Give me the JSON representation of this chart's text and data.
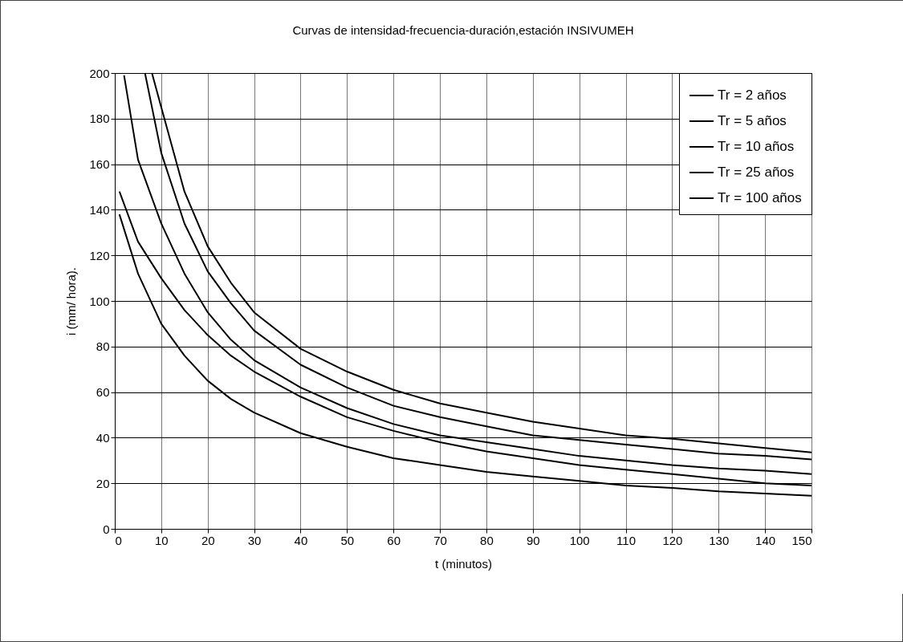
{
  "chart_data": {
    "type": "line",
    "title": "Curvas de intensidad-frecuencia-duración,estación INSIVUMEH",
    "xlabel": "t (minutos)",
    "ylabel": "i (mm/ hora).",
    "xlim": [
      0,
      150
    ],
    "ylim": [
      0,
      200
    ],
    "xticks": [
      0,
      10,
      20,
      30,
      40,
      50,
      60,
      70,
      80,
      90,
      100,
      110,
      120,
      130,
      140,
      150
    ],
    "yticks": [
      0,
      20,
      40,
      60,
      80,
      100,
      120,
      140,
      160,
      180,
      200
    ],
    "grid": true,
    "legend": "top right",
    "marker": "none",
    "line_style": "solid",
    "series": [
      {
        "name": "Tr = 2 años",
        "color": "#000000",
        "x": [
          1,
          5,
          10,
          15,
          20,
          25,
          30,
          40,
          50,
          60,
          70,
          80,
          90,
          100,
          110,
          120,
          130,
          140,
          150
        ],
        "values": [
          138,
          112,
          90,
          76,
          65,
          57,
          51,
          42,
          36,
          31,
          28,
          25,
          23,
          21,
          19,
          18,
          16.5,
          15.5,
          14.5
        ]
      },
      {
        "name": "Tr = 5 años",
        "color": "#000000",
        "x": [
          1,
          5,
          10,
          15,
          20,
          25,
          30,
          40,
          50,
          60,
          70,
          80,
          90,
          100,
          110,
          120,
          130,
          140,
          150
        ],
        "values": [
          148,
          126,
          110,
          96,
          85,
          76,
          69,
          58,
          49,
          43,
          38,
          34,
          31,
          28,
          26,
          24,
          22,
          20,
          19
        ]
      },
      {
        "name": "Tr = 10 años",
        "color": "#000000",
        "x": [
          2,
          5,
          10,
          15,
          20,
          25,
          30,
          40,
          50,
          60,
          70,
          80,
          90,
          100,
          110,
          120,
          130,
          140,
          150
        ],
        "values": [
          199,
          162,
          134,
          112,
          95,
          83,
          74,
          62,
          53,
          46,
          41,
          38,
          35,
          32,
          30,
          28,
          26.5,
          25.5,
          24
        ]
      },
      {
        "name": "Tr = 25 años",
        "color": "#000000",
        "x": [
          6.5,
          10,
          15,
          20,
          25,
          30,
          40,
          50,
          60,
          70,
          80,
          90,
          100,
          110,
          120,
          130,
          140,
          150
        ],
        "values": [
          200,
          165,
          134,
          113,
          99,
          87,
          72,
          62,
          54,
          49,
          45,
          41,
          39,
          37,
          35,
          33,
          32,
          30.5
        ]
      },
      {
        "name": "Tr = 100 años",
        "color": "#000000",
        "x": [
          8,
          10,
          15,
          20,
          25,
          30,
          40,
          50,
          60,
          70,
          80,
          90,
          100,
          110,
          120,
          130,
          140,
          150
        ],
        "values": [
          200,
          185,
          148,
          124,
          108,
          95,
          79,
          69,
          61,
          55,
          51,
          47,
          44,
          41,
          39.5,
          37.5,
          35.5,
          33.5
        ]
      }
    ]
  }
}
